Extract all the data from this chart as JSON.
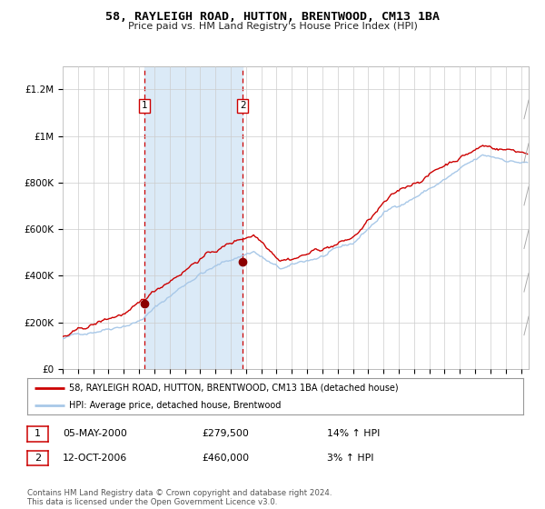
{
  "title": "58, RAYLEIGH ROAD, HUTTON, BRENTWOOD, CM13 1BA",
  "subtitle": "Price paid vs. HM Land Registry's House Price Index (HPI)",
  "ylim": [
    0,
    1300000
  ],
  "yticks": [
    0,
    200000,
    400000,
    600000,
    800000,
    1000000,
    1200000
  ],
  "ytick_labels": [
    "£0",
    "£200K",
    "£400K",
    "£600K",
    "£800K",
    "£1M",
    "£1.2M"
  ],
  "hpi_color": "#a8c8e8",
  "price_color": "#cc0000",
  "marker_color": "#8b0000",
  "vline_color": "#cc0000",
  "shade_color": "#dbeaf7",
  "grid_color": "#cccccc",
  "background_color": "#ffffff",
  "purchase1_date": 2000.36,
  "purchase1_price": 279500,
  "purchase2_date": 2006.79,
  "purchase2_price": 460000,
  "legend_line1": "58, RAYLEIGH ROAD, HUTTON, BRENTWOOD, CM13 1BA (detached house)",
  "legend_line2": "HPI: Average price, detached house, Brentwood",
  "note1_num": "1",
  "note1_date": "05-MAY-2000",
  "note1_price": "£279,500",
  "note1_hpi": "14% ↑ HPI",
  "note2_num": "2",
  "note2_date": "12-OCT-2006",
  "note2_price": "£460,000",
  "note2_hpi": "3% ↑ HPI",
  "copyright": "Contains HM Land Registry data © Crown copyright and database right 2024.\nThis data is licensed under the Open Government Licence v3.0.",
  "xstart": 1995.0,
  "xend": 2025.5
}
